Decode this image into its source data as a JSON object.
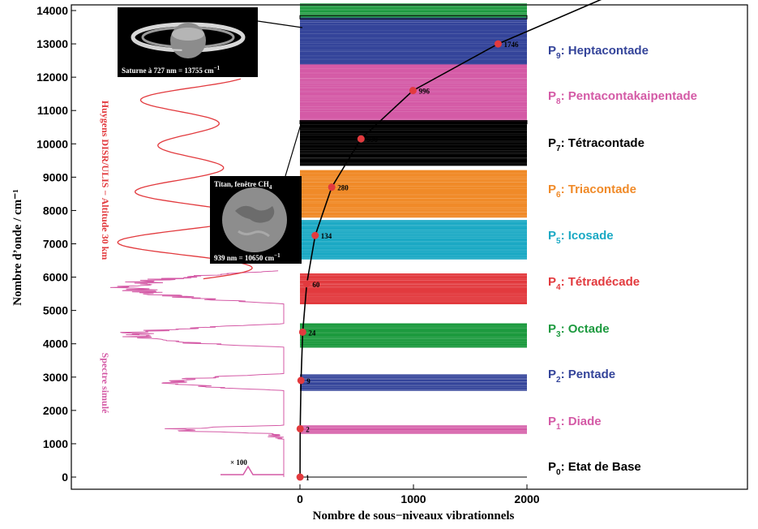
{
  "chart_data": {
    "type": "line",
    "xlabel": "Nombre de sous−niveaux vibrationnels",
    "ylabel": "Nombre d’onde / cm⁻¹",
    "xlim": [
      -2200,
      2000
    ],
    "ylim": [
      -350,
      14200
    ],
    "x_ticks": [
      0,
      1000,
      2000
    ],
    "y_ticks": [
      0,
      1000,
      2000,
      3000,
      4000,
      5000,
      6000,
      7000,
      8000,
      9000,
      10000,
      11000,
      12000,
      13000,
      14000
    ],
    "series": [
      {
        "points": [
          {
            "x": 1,
            "y": 0,
            "label": "1"
          },
          {
            "x": 2,
            "y": 1450,
            "label": "2"
          },
          {
            "x": 9,
            "y": 2900,
            "label": "9"
          },
          {
            "x": 24,
            "y": 4350,
            "label": "24"
          },
          {
            "x": 60,
            "y": 5800,
            "label": "60"
          },
          {
            "x": 134,
            "y": 7250,
            "label": "134"
          },
          {
            "x": 280,
            "y": 8700,
            "label": "280"
          },
          {
            "x": 538,
            "y": 10150,
            "label": "538"
          },
          {
            "x": 996,
            "y": 11600,
            "label": "996"
          },
          {
            "x": 1746,
            "y": 13000,
            "label": "1746"
          }
        ]
      }
    ],
    "polyads": [
      {
        "p": "P",
        "sub": "0",
        "name": ": Etat de Base",
        "color": "#000000",
        "lo": 0,
        "hi": 0,
        "n": 1
      },
      {
        "p": "P",
        "sub": "1",
        "name": ": Diade",
        "color": "#d45aa6",
        "lo": 1310,
        "hi": 1540,
        "n": 2
      },
      {
        "p": "P",
        "sub": "2",
        "name": ": Pentade",
        "color": "#34449a",
        "lo": 2600,
        "hi": 3070,
        "n": 9
      },
      {
        "p": "P",
        "sub": "3",
        "name": ": Octade",
        "color": "#1d9a3f",
        "lo": 3900,
        "hi": 4600,
        "n": 24
      },
      {
        "p": "P",
        "sub": "4",
        "name": ": Tétradécade",
        "color": "#e23a3e",
        "lo": 5200,
        "hi": 6100,
        "n": 60
      },
      {
        "p": "P",
        "sub": "5",
        "name": ": Icosade",
        "color": "#1aa9c4",
        "lo": 6550,
        "hi": 7700,
        "n": 134
      },
      {
        "p": "P",
        "sub": "6",
        "name": ": Triacontade",
        "color": "#f08a28",
        "lo": 7800,
        "hi": 9200,
        "n": 280
      },
      {
        "p": "P",
        "sub": "7",
        "name": ": Tétracontade",
        "color": "#000000",
        "lo": 9350,
        "hi": 10700,
        "n": 538
      },
      {
        "p": "P",
        "sub": "8",
        "name": ": Pentacontakaipentade",
        "color": "#d45aa6",
        "lo": 10700,
        "hi": 12400,
        "n": 996
      },
      {
        "p": "P",
        "sub": "9",
        "name": ": Heptacontade",
        "color": "#34449a",
        "lo": 12400,
        "hi": 13800,
        "n": 1746
      },
      {
        "p": "",
        "sub": "",
        "name": "",
        "color": "#1d9a3f",
        "lo": 13800,
        "hi": 14200,
        "n": 0
      }
    ],
    "grid": false
  },
  "annotations": {
    "huygens": "Huygens DISR/ULIS − Altitude 30 km",
    "spectre": "Spectre simulé",
    "x100": "× 100",
    "saturn_caption": "Saturne à 727 nm = 13755 cm",
    "saturn_sup": "−1",
    "titan_title": "Titan, fenêtre CH",
    "titan_sub": "4",
    "titan_caption": "939 nm = 10650 cm",
    "titan_sup": "−1"
  },
  "colors": {
    "huygens": "#e23a3e",
    "spectre": "#d45aa6",
    "marker": "#e23a3e"
  }
}
